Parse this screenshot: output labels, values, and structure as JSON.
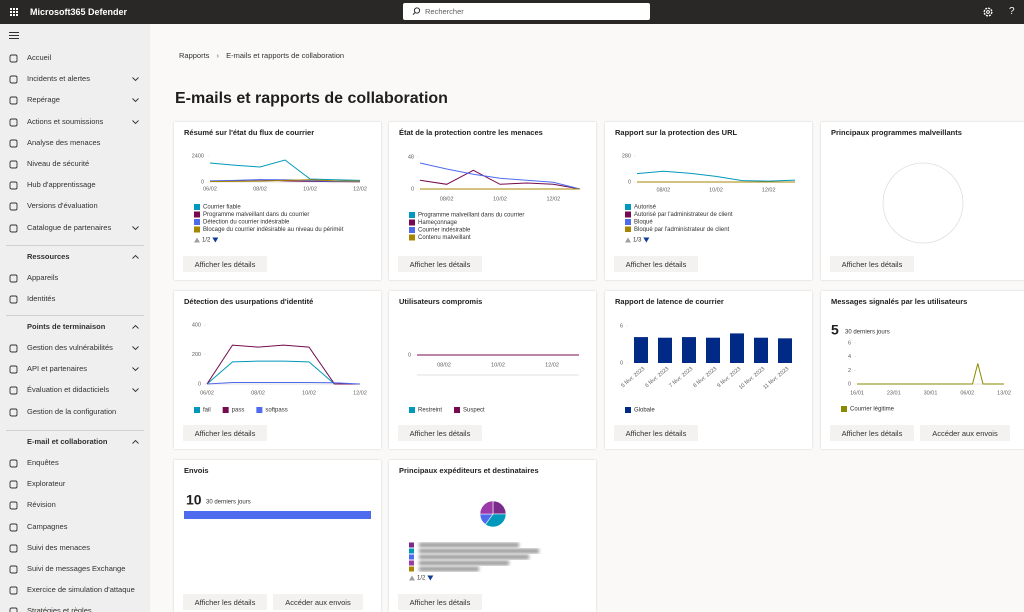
{
  "topbar": {
    "app_name": "Microsoft365 Defender",
    "search_placeholder": "Rechercher",
    "help": "?"
  },
  "nav": {
    "items": [
      {
        "label": "Accueil"
      },
      {
        "label": "Incidents et alertes",
        "expandable": true
      },
      {
        "label": "Repérage",
        "expandable": true
      },
      {
        "label": "Actions et soumissions",
        "expandable": true
      },
      {
        "label": "Analyse des menaces"
      },
      {
        "label": "Niveau de sécurité"
      },
      {
        "label": "Hub d'apprentissage"
      },
      {
        "label": "Versions d'évaluation"
      },
      {
        "label": "Catalogue de partenaires",
        "expandable": true
      }
    ],
    "sections": [
      {
        "title": "Ressources",
        "items": [
          {
            "label": "Appareils"
          },
          {
            "label": "Identités"
          }
        ]
      },
      {
        "title": "Points de terminaison",
        "items": [
          {
            "label": "Gestion des vulnérabilités",
            "expandable": true
          },
          {
            "label": "API et partenaires",
            "expandable": true
          },
          {
            "label": "Évaluation et didacticiels",
            "expandable": true
          },
          {
            "label": "Gestion de la configuration"
          }
        ]
      },
      {
        "title": "E-mail et collaboration",
        "items": [
          {
            "label": "Enquêtes"
          },
          {
            "label": "Explorateur"
          },
          {
            "label": "Révision"
          },
          {
            "label": "Campagnes"
          },
          {
            "label": "Suivi des menaces"
          },
          {
            "label": "Suivi de messages Exchange"
          },
          {
            "label": "Exercice de simulation d'attaque"
          },
          {
            "label": "Stratégies et règles"
          }
        ]
      }
    ]
  },
  "breadcrumb": [
    "Rapports",
    "E-mails et rapports de collaboration"
  ],
  "page_title": "E-mails et rapports de collaboration",
  "cards": [
    {
      "title": "Résumé sur l'état du flux de courrier",
      "chart": {
        "type": "line",
        "categories": [
          "06/02",
          null,
          "08/02",
          null,
          "10/02",
          null,
          "12/02"
        ],
        "ylim": [
          0,
          2400
        ],
        "yticks": [
          0,
          2400
        ],
        "series": [
          {
            "name": "Courrier fiable",
            "color": "#0099bc",
            "values": [
              1750,
              1550,
              1380,
              2030,
              280,
              200,
              150
            ]
          },
          {
            "name": "Programme malveillant dans du courrier",
            "color": "#750b4e",
            "values": [
              50,
              100,
              200,
              100,
              60,
              40,
              30
            ]
          },
          {
            "name": "Détection du courrier indésirable",
            "color": "#4f6bed",
            "values": [
              100,
              150,
              220,
              200,
              120,
              60,
              40
            ]
          },
          {
            "name": "Blocage du courrier indésirable au niveau du périmèt",
            "color": "#a98400",
            "values": [
              50,
              60,
              80,
              150,
              200,
              100,
              80
            ]
          }
        ]
      },
      "pager": "1/2",
      "buttons": [
        "Afficher les détails"
      ]
    },
    {
      "title": "État de la protection contre les menaces",
      "chart": {
        "type": "line",
        "categories": [
          null,
          "08/02",
          null,
          "10/02",
          null,
          "12/02",
          null
        ],
        "ylim": [
          0,
          48
        ],
        "yticks": [
          0,
          48
        ],
        "series": [
          {
            "name": "Programme malveillant dans du courrier",
            "color": "#0099bc",
            "values": [
              0,
              0,
              0,
              0,
              0,
              0,
              0
            ]
          },
          {
            "name": "Hameçonnage",
            "color": "#750b4e",
            "values": [
              13,
              7,
              28,
              7,
              9,
              7,
              0
            ]
          },
          {
            "name": "Courrier indésirable",
            "color": "#4f6bed",
            "values": [
              39,
              30,
              22,
              16,
              13,
              10,
              0
            ]
          },
          {
            "name": "Contenu malveillant",
            "color": "#a98400",
            "values": [
              0,
              0,
              0,
              0,
              0,
              0,
              0
            ]
          }
        ]
      },
      "buttons": [
        "Afficher les détails"
      ]
    },
    {
      "title": "Rapport sur la protection des URL",
      "chart": {
        "type": "line",
        "categories": [
          null,
          "08/02",
          null,
          "10/02",
          null,
          "12/02",
          null
        ],
        "ylim": [
          0,
          280
        ],
        "yticks": [
          0,
          280
        ],
        "series": [
          {
            "name": "Autorisé",
            "color": "#0099bc",
            "values": [
              90,
              115,
              95,
              60,
              15,
              10,
              20
            ]
          },
          {
            "name": "Autorisé par l'administrateur de client",
            "color": "#750b4e",
            "values": [
              0,
              0,
              0,
              0,
              0,
              0,
              0
            ]
          },
          {
            "name": "Bloqué",
            "color": "#4f6bed",
            "values": [
              0,
              0,
              0,
              0,
              0,
              0,
              0
            ]
          },
          {
            "name": "Bloqué par l'administrateur de client",
            "color": "#a98400",
            "values": [
              0,
              0,
              0,
              0,
              0,
              0,
              0
            ]
          }
        ]
      },
      "pager": "1/3",
      "buttons": [
        "Afficher les détails"
      ]
    },
    {
      "title": "Principaux programmes malveillants",
      "chart": {
        "type": "pie",
        "values": []
      },
      "buttons": [
        "Afficher les détails"
      ]
    },
    {
      "title": "Détection des usurpations d'identité",
      "chart": {
        "type": "line",
        "categories": [
          "06/02",
          null,
          "08/02",
          null,
          "10/02",
          null,
          "12/02"
        ],
        "ylim": [
          0,
          400
        ],
        "yticks": [
          0,
          200,
          400
        ],
        "series": [
          {
            "name": "fail",
            "color": "#0099bc",
            "values": [
              0,
              150,
              155,
              155,
              150,
              0,
              0
            ]
          },
          {
            "name": "pass",
            "color": "#750b4e",
            "values": [
              0,
              264,
              250,
              264,
              250,
              0,
              0
            ]
          },
          {
            "name": "softpass",
            "color": "#4f6bed",
            "values": [
              0,
              10,
              10,
              10,
              10,
              8,
              0
            ]
          }
        ]
      },
      "buttons": [
        "Afficher les détails"
      ]
    },
    {
      "title": "Utilisateurs compromis",
      "chart": {
        "type": "line",
        "categories": [
          null,
          "08/02",
          null,
          "10/02",
          null,
          "12/02",
          null
        ],
        "ylim": [
          -1,
          1
        ],
        "yticks": [
          0
        ],
        "series": [
          {
            "name": "Restreint",
            "color": "#0099bc",
            "values": [
              0,
              0,
              0,
              0,
              0,
              0,
              0
            ]
          },
          {
            "name": "Suspect",
            "color": "#750b4e",
            "values": [
              0,
              0,
              0,
              0,
              0,
              0,
              0
            ]
          }
        ]
      },
      "buttons": [
        "Afficher les détails"
      ]
    },
    {
      "title": "Rapport de latence de courrier",
      "chart": {
        "type": "bar",
        "categories": [
          "5 févr. 2023",
          "6 févr. 2023",
          "7 févr. 2023",
          "8 févr. 2023",
          "9 févr. 2023",
          "10 févr. 2023",
          "11 févr. 2023"
        ],
        "ylim": [
          0,
          6
        ],
        "yticks": [
          0,
          6
        ],
        "series": [
          {
            "name": "Globale",
            "color": "#002a86",
            "values": [
              4.2,
              4.1,
              4.2,
              4.1,
              4.8,
              4.1,
              4.0
            ]
          }
        ]
      },
      "buttons": [
        "Afficher les détails"
      ]
    },
    {
      "title": "Messages signalés par les utilisateurs",
      "count": 5,
      "count_label": "30 derniers jours",
      "chart": {
        "type": "line",
        "categories": [
          "16/01",
          null,
          null,
          null,
          null,
          null,
          null,
          "23/01",
          null,
          null,
          null,
          null,
          null,
          null,
          "30/01",
          null,
          null,
          null,
          null,
          null,
          null,
          "06/02",
          null,
          null,
          null,
          null,
          null,
          null,
          "13/02"
        ],
        "ylim": [
          0,
          6
        ],
        "yticks": [
          0,
          2,
          4,
          6
        ],
        "series": [
          {
            "name": "Courrier légitime",
            "color": "#8a8a00",
            "values": [
              0,
              0,
              0,
              0,
              0,
              0,
              0,
              0,
              0,
              0,
              0,
              0,
              0,
              0,
              0,
              0,
              0,
              0,
              0,
              0,
              0,
              0,
              0,
              3,
              0,
              0,
              0,
              0,
              0
            ]
          }
        ]
      },
      "buttons": [
        "Afficher les détails",
        "Accéder aux envois"
      ]
    },
    {
      "title": "Envois",
      "count": 10,
      "count_label": "30 derniers jours",
      "chart": {
        "type": "meter",
        "color": "#4f6bed"
      },
      "buttons": [
        "Afficher les détails",
        "Accéder aux envois"
      ]
    },
    {
      "title": "Principaux expéditeurs et destinataires",
      "chart": {
        "type": "pie",
        "values": [
          25,
          35,
          15,
          25
        ],
        "colors": [
          "#7a2a8a",
          "#0099bc",
          "#4f6bed",
          "#9b3aa8"
        ]
      },
      "pager": "1/2",
      "buttons": [
        "Afficher les détails"
      ]
    }
  ]
}
